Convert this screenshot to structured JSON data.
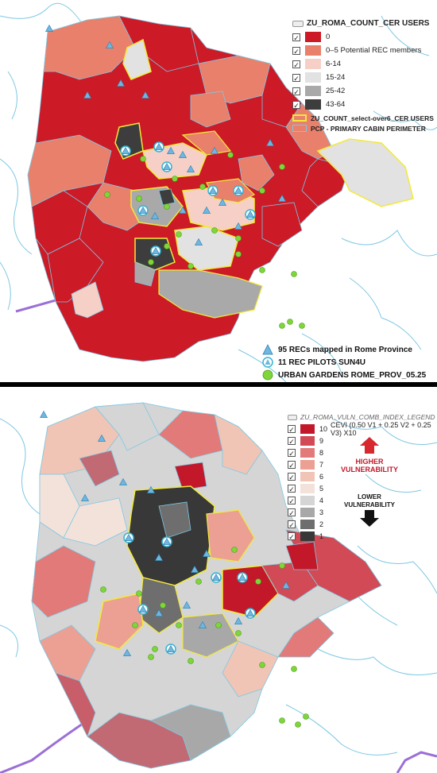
{
  "top_map": {
    "legend_title": "ZU_ROMA_COUNT_CER USERS",
    "classes": [
      {
        "label": "0",
        "color": "#cc1a27"
      },
      {
        "label": "0–5 Potential REC members",
        "color": "#e8806c"
      },
      {
        "label": "6-14",
        "color": "#f6d0c7"
      },
      {
        "label": "15-24",
        "color": "#e2e2e2"
      },
      {
        "label": "25-42",
        "color": "#a9a9a9"
      },
      {
        "label": "43-64",
        "color": "#3d3d3d"
      }
    ],
    "overlays": [
      {
        "label": "ZU_COUNT_select-over6_CER USERS",
        "color": "#f2e93a"
      },
      {
        "label": "PCP - PRIMARY CABIN PERIMETER",
        "color": "#7ec8e3"
      }
    ],
    "points": [
      {
        "label": "95 RECs mapped in Rome Province",
        "icon": "triangle-icon"
      },
      {
        "label": "11 REC PILOTS SUN4U",
        "icon": "circle-triangle-icon"
      },
      {
        "label": "URBAN GARDENS ROME_PROV_05.25",
        "icon": "green-dot-icon"
      }
    ]
  },
  "bottom_map": {
    "legend_title": "ZU_ROMA_VULN_COMB_INDEX_LEGEND",
    "formula": "CEVI (0.50 V1 + 0.25 V2 + 0.25 V3) X10",
    "classes": [
      {
        "label": "10",
        "color": "#c2182a"
      },
      {
        "label": "9",
        "color": "#d24a55"
      },
      {
        "label": "8",
        "color": "#e17a78"
      },
      {
        "label": "7",
        "color": "#eba093"
      },
      {
        "label": "6",
        "color": "#f1c5b6"
      },
      {
        "label": "5",
        "color": "#f3e2da"
      },
      {
        "label": "4",
        "color": "#d5d5d5"
      },
      {
        "label": "3",
        "color": "#a8a8a8"
      },
      {
        "label": "2",
        "color": "#6e6e6e"
      },
      {
        "label": "1",
        "color": "#383838"
      }
    ],
    "higher_label": "HIGHER VULNERABILITY",
    "lower_label": "LOWER VULNERABILITY"
  },
  "colors": {
    "boundary_yellow": "#f2e93a",
    "pcp_blue": "#7ec8e3",
    "coast_purple": "#9b6fd6",
    "rec_triangle": "#6fb7e0",
    "garden_green": "#7ed63a"
  }
}
